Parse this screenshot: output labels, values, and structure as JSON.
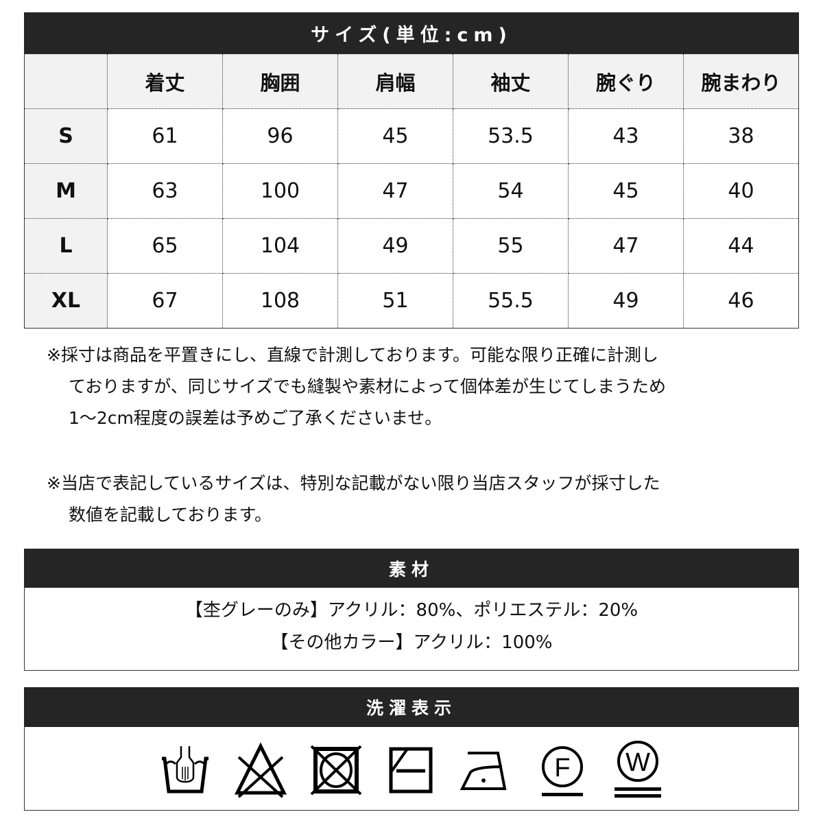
{
  "size_section": {
    "title": "サイズ(単位:cm)",
    "columns": [
      "",
      "着丈",
      "胸囲",
      "肩幅",
      "袖丈",
      "腕ぐり",
      "腕まわり"
    ],
    "rows": [
      {
        "size": "S",
        "values": [
          "61",
          "96",
          "45",
          "53.5",
          "43",
          "38"
        ]
      },
      {
        "size": "M",
        "values": [
          "63",
          "100",
          "47",
          "54",
          "45",
          "40"
        ]
      },
      {
        "size": "L",
        "values": [
          "65",
          "104",
          "49",
          "55",
          "47",
          "44"
        ]
      },
      {
        "size": "XL",
        "values": [
          "67",
          "108",
          "51",
          "55.5",
          "49",
          "46"
        ]
      }
    ]
  },
  "notes": [
    [
      "※採寸は商品を平置きにし、直線で計測しております。可能な限り正確に計測し",
      "ておりますが、同じサイズでも縫製や素材によって個体差が生じてしまうため",
      "1～2cm程度の誤差は予めご了承くださいませ。"
    ],
    [
      "※当店で表記しているサイズは、特別な記載がない限り当店スタッフが採寸した",
      "数値を記載しております。"
    ]
  ],
  "material": {
    "title": "素材",
    "lines": [
      "【杢グレーのみ】アクリル：80%、ポリエステル：20%",
      "【その他カラー】アクリル：100%"
    ]
  },
  "care": {
    "title": "洗濯表示",
    "icons": [
      "hand-wash-icon",
      "no-bleach-icon",
      "no-tumble-dry-icon",
      "shade-flat-dry-icon",
      "low-iron-icon",
      "dry-clean-f-icon",
      "wet-clean-w-icon"
    ],
    "letters": {
      "f": "F",
      "w": "W"
    }
  }
}
